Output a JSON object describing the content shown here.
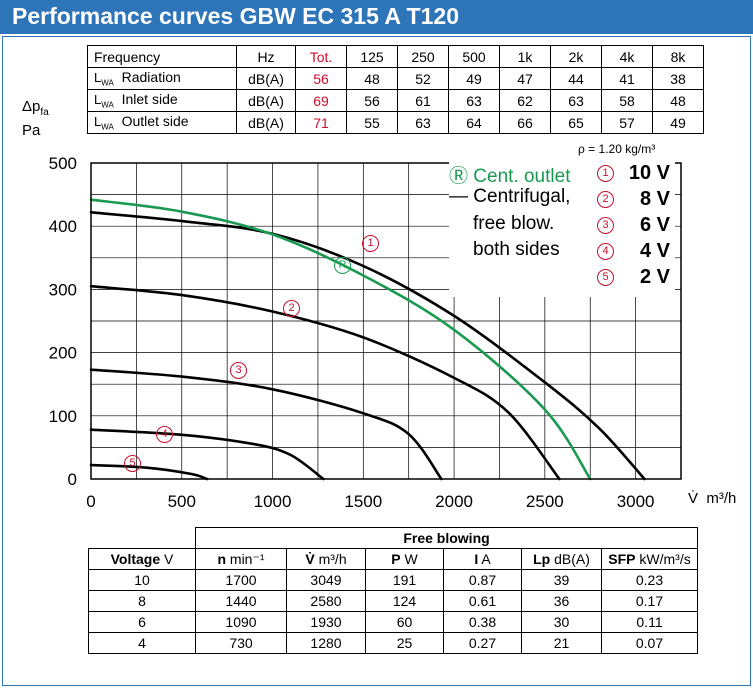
{
  "header": {
    "title": "Performance curves GBW EC 315 A T120"
  },
  "freq_table": {
    "headers": [
      "Frequency",
      "Hz",
      "Tot.",
      "125",
      "250",
      "500",
      "1k",
      "2k",
      "4k",
      "8k"
    ],
    "lwa": "L",
    "lwa_sub": "WA",
    "rows": [
      {
        "label": "Radiation",
        "unit": "dB(A)",
        "values": [
          "56",
          "48",
          "52",
          "49",
          "47",
          "44",
          "41",
          "38"
        ]
      },
      {
        "label": "Inlet side",
        "unit": "dB(A)",
        "values": [
          "69",
          "56",
          "61",
          "63",
          "62",
          "63",
          "58",
          "48"
        ]
      },
      {
        "label": "Outlet side",
        "unit": "dB(A)",
        "values": [
          "71",
          "55",
          "63",
          "64",
          "66",
          "65",
          "57",
          "49"
        ]
      }
    ]
  },
  "axis": {
    "y_symbol": "Δp",
    "y_sub": "fa",
    "y_unit": "Pa",
    "x_symbol": "V̇",
    "x_unit": "m³/h"
  },
  "density": {
    "symbol": "ρ",
    "text": "= 1.20 kg/m³"
  },
  "legend": {
    "outlet_symbol": "Ⓡ",
    "outlet_text": "Cent. outlet",
    "line_dash": "—",
    "line_text_1": "Centrifugal,",
    "line_text_2": "free blow.",
    "line_text_3": "both sides",
    "voltages": [
      {
        "mark": "1",
        "label": "10 V"
      },
      {
        "mark": "2",
        "label": "8 V"
      },
      {
        "mark": "3",
        "label": "6 V"
      },
      {
        "mark": "4",
        "label": "4 V"
      },
      {
        "mark": "5",
        "label": "2 V"
      }
    ]
  },
  "curve_marks": [
    "1",
    "2",
    "3",
    "4",
    "5"
  ],
  "outlet_mark": "R",
  "colors": {
    "header": "#2e74b8",
    "green": "#1a9a50",
    "red": "#c8102e",
    "black": "#000000"
  },
  "chart_data": {
    "type": "line",
    "xlim": [
      0,
      3250
    ],
    "ylim": [
      0,
      500
    ],
    "x_ticks": [
      0,
      500,
      1000,
      1500,
      2000,
      2500,
      3000
    ],
    "y_ticks": [
      0,
      100,
      200,
      300,
      400,
      500
    ],
    "grid": true,
    "series": [
      {
        "mark": "1",
        "color": "#000000",
        "points": [
          [
            0,
            422
          ],
          [
            500,
            408
          ],
          [
            1000,
            388
          ],
          [
            1500,
            337
          ],
          [
            2000,
            258
          ],
          [
            2500,
            153
          ],
          [
            2800,
            80
          ],
          [
            3049,
            0
          ]
        ]
      },
      {
        "mark": "2",
        "color": "#000000",
        "points": [
          [
            0,
            305
          ],
          [
            500,
            291
          ],
          [
            1000,
            265
          ],
          [
            1500,
            224
          ],
          [
            2000,
            160
          ],
          [
            2300,
            105
          ],
          [
            2580,
            0
          ]
        ]
      },
      {
        "mark": "3",
        "color": "#000000",
        "points": [
          [
            0,
            173
          ],
          [
            500,
            162
          ],
          [
            1000,
            142
          ],
          [
            1500,
            104
          ],
          [
            1750,
            71
          ],
          [
            1930,
            0
          ]
        ]
      },
      {
        "mark": "4",
        "color": "#000000",
        "points": [
          [
            0,
            78
          ],
          [
            500,
            70
          ],
          [
            900,
            55
          ],
          [
            1100,
            38
          ],
          [
            1280,
            0
          ]
        ]
      },
      {
        "mark": "5",
        "color": "#000000",
        "points": [
          [
            0,
            22
          ],
          [
            300,
            18
          ],
          [
            550,
            8
          ],
          [
            640,
            0
          ]
        ]
      },
      {
        "mark": "R",
        "color": "#1a9a50",
        "points": [
          [
            0,
            442
          ],
          [
            500,
            423
          ],
          [
            1000,
            387
          ],
          [
            1500,
            322
          ],
          [
            2000,
            236
          ],
          [
            2500,
            110
          ],
          [
            2750,
            0
          ]
        ]
      }
    ]
  },
  "free_blowing": {
    "title": "Free blowing",
    "headers": [
      {
        "name": "Voltage",
        "unit": "V"
      },
      {
        "name": "n",
        "unit": "min⁻¹"
      },
      {
        "name": "V̇",
        "unit": "m³/h"
      },
      {
        "name": "P",
        "unit": "W"
      },
      {
        "name": "I",
        "unit": "A"
      },
      {
        "name": "Lp",
        "unit": "dB(A)"
      },
      {
        "name": "SFP",
        "unit": "kW/m³/s"
      }
    ],
    "rows": [
      [
        "10",
        "1700",
        "3049",
        "191",
        "0.87",
        "39",
        "0.23"
      ],
      [
        "8",
        "1440",
        "2580",
        "124",
        "0.61",
        "36",
        "0.17"
      ],
      [
        "6",
        "1090",
        "1930",
        "60",
        "0.38",
        "30",
        "0.11"
      ],
      [
        "4",
        "730",
        "1280",
        "25",
        "0.27",
        "21",
        "0.07"
      ]
    ]
  }
}
